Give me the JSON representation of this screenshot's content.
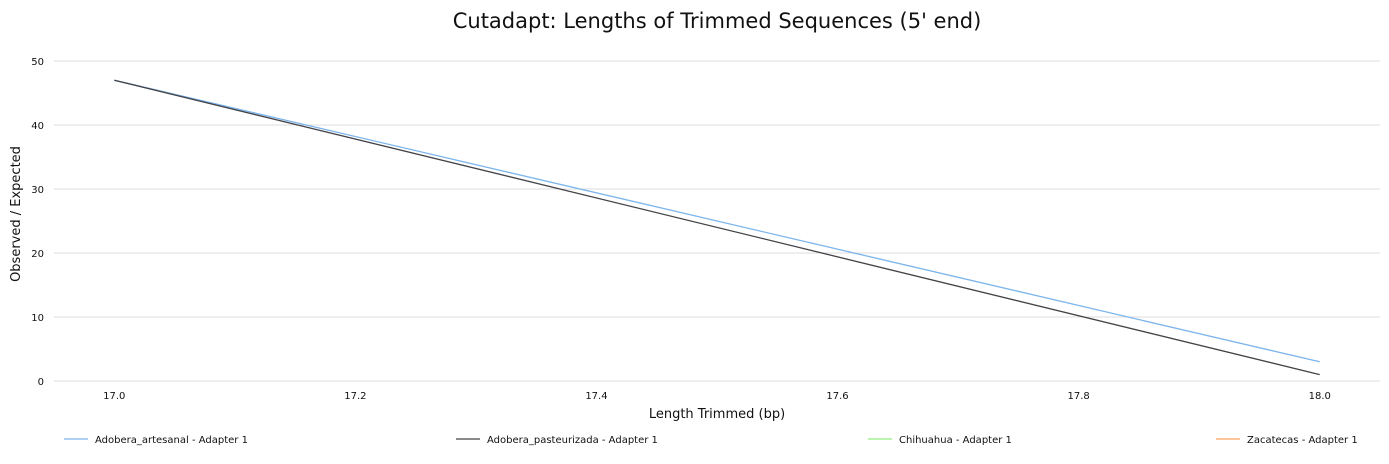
{
  "chart_data": {
    "type": "line",
    "title": "Cutadapt: Lengths of Trimmed Sequences (5' end)",
    "xlabel": "Length Trimmed (bp)",
    "ylabel": "Observed / Expected",
    "xlim": [
      16.95,
      18.05
    ],
    "ylim": [
      0,
      50
    ],
    "xticks": [
      "17.0",
      "17.2",
      "17.4",
      "17.6",
      "17.8",
      "18.0"
    ],
    "xtick_values": [
      17.0,
      17.2,
      17.4,
      17.6,
      17.8,
      18.0
    ],
    "yticks": [
      "0",
      "10",
      "20",
      "30",
      "40",
      "50"
    ],
    "ytick_values": [
      0,
      10,
      20,
      30,
      40,
      50
    ],
    "grid": "horizontal",
    "legend_position": "bottom",
    "series": [
      {
        "name": "Adobera_artesanal - Adapter 1",
        "color": "#7cb5ec",
        "x": [
          17,
          18
        ],
        "y": [
          47,
          3
        ]
      },
      {
        "name": "Adobera_pasteurizada - Adapter 1",
        "color": "#434348",
        "x": [
          17,
          18
        ],
        "y": [
          47,
          1
        ]
      },
      {
        "name": "Chihuahua - Adapter 1",
        "color": "#90ed7d",
        "x": [],
        "y": []
      },
      {
        "name": "Zacatecas - Adapter 1",
        "color": "#f7a35c",
        "x": [],
        "y": []
      }
    ]
  }
}
